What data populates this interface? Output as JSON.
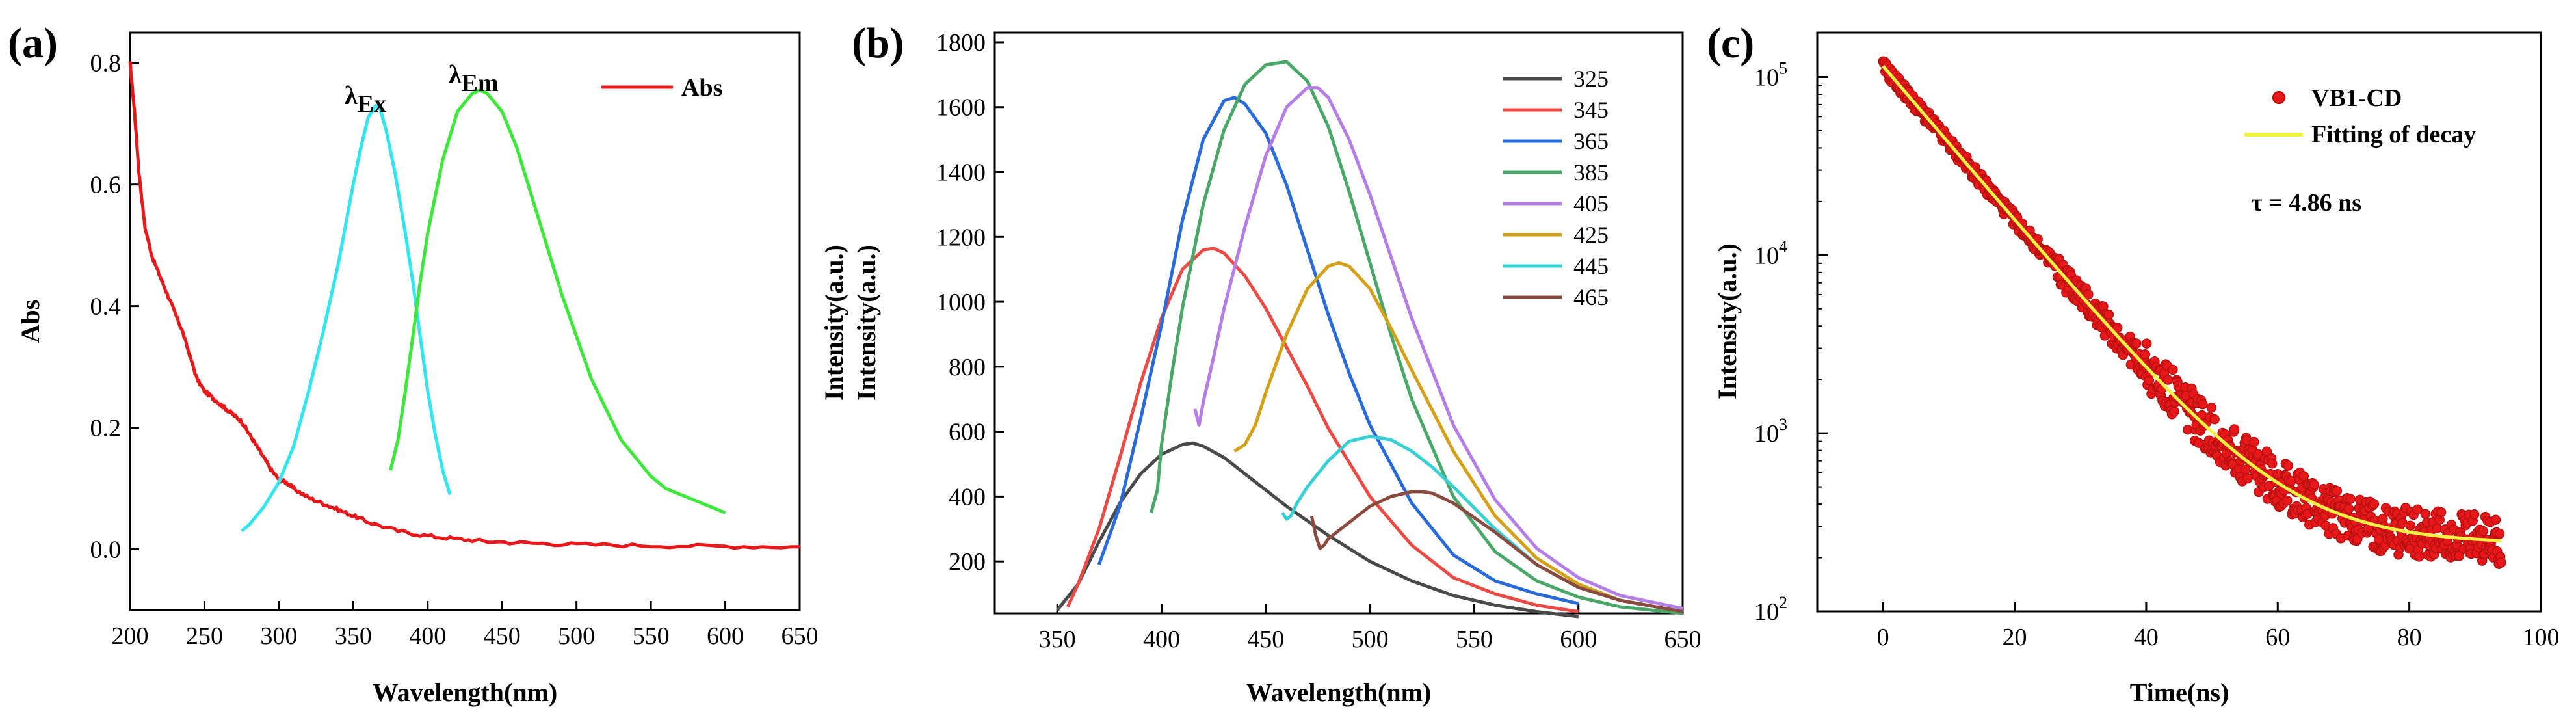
{
  "chart_data": [
    {
      "panel": "(a)",
      "type": "line",
      "xlabel": "Wavelength(nm)",
      "ylabel": "Abs",
      "xlim": [
        200,
        650
      ],
      "ylim": [
        -0.1,
        0.85
      ],
      "xticks": [
        200,
        250,
        300,
        350,
        400,
        450,
        500,
        550,
        600,
        650
      ],
      "yticks": [
        0.0,
        0.2,
        0.4,
        0.6,
        0.8
      ],
      "legend": [
        "Abs"
      ],
      "annotations": [
        {
          "text": "λ",
          "sub": "Ex",
          "x": 356,
          "y": 0.77
        },
        {
          "text": "λ",
          "sub": "Em",
          "x": 421,
          "y": 0.8
        }
      ],
      "series": [
        {
          "name": "Abs",
          "color": "#e8181a",
          "noisy": true,
          "x": [
            200,
            203,
            206,
            210,
            215,
            220,
            225,
            230,
            235,
            240,
            245,
            250,
            255,
            260,
            265,
            270,
            275,
            280,
            285,
            290,
            295,
            300,
            305,
            310,
            320,
            330,
            340,
            350,
            360,
            380,
            400,
            420,
            440,
            470,
            500,
            550,
            600,
            650
          ],
          "y": [
            0.8,
            0.72,
            0.62,
            0.53,
            0.48,
            0.45,
            0.42,
            0.39,
            0.36,
            0.32,
            0.28,
            0.26,
            0.25,
            0.24,
            0.23,
            0.22,
            0.21,
            0.19,
            0.17,
            0.15,
            0.13,
            0.115,
            0.11,
            0.1,
            0.085,
            0.075,
            0.065,
            0.055,
            0.045,
            0.03,
            0.022,
            0.017,
            0.013,
            0.01,
            0.008,
            0.006,
            0.005,
            0.004
          ]
        },
        {
          "name": "λEx",
          "color": "#33e5ef",
          "x": [
            275,
            280,
            290,
            300,
            310,
            320,
            330,
            340,
            350,
            355,
            360,
            365,
            368,
            372,
            378,
            385,
            390,
            395,
            400,
            405,
            410,
            415
          ],
          "y": [
            0.03,
            0.04,
            0.07,
            0.11,
            0.17,
            0.26,
            0.36,
            0.47,
            0.6,
            0.66,
            0.71,
            0.73,
            0.725,
            0.69,
            0.62,
            0.52,
            0.44,
            0.35,
            0.26,
            0.19,
            0.13,
            0.09
          ]
        },
        {
          "name": "λEm",
          "color": "#3ee83a",
          "x": [
            375,
            380,
            385,
            390,
            395,
            400,
            410,
            420,
            430,
            435,
            440,
            450,
            460,
            470,
            480,
            490,
            500,
            510,
            520,
            530,
            540,
            550,
            560,
            570,
            580,
            590,
            600
          ],
          "y": [
            0.13,
            0.18,
            0.26,
            0.35,
            0.44,
            0.52,
            0.64,
            0.72,
            0.75,
            0.755,
            0.75,
            0.72,
            0.66,
            0.58,
            0.5,
            0.42,
            0.35,
            0.28,
            0.23,
            0.18,
            0.15,
            0.12,
            0.1,
            0.09,
            0.08,
            0.07,
            0.06
          ]
        }
      ]
    },
    {
      "panel": "(b)",
      "type": "line",
      "xlabel": "Wavelength(nm)",
      "ylabel": "Intensity(a.u.)",
      "ylabel2": "Intensity(a.u.)",
      "xlim": [
        320,
        650
      ],
      "ylim": [
        40,
        1830
      ],
      "xticks": [
        350,
        400,
        450,
        500,
        550,
        600,
        650
      ],
      "yticks": [
        200,
        400,
        600,
        800,
        1000,
        1200,
        1400,
        1600,
        1800
      ],
      "legend": [
        "325",
        "345",
        "365",
        "385",
        "405",
        "425",
        "445",
        "465"
      ],
      "series": [
        {
          "name": "325",
          "color": "#4a4a4a",
          "x": [
            350,
            360,
            370,
            380,
            390,
            400,
            410,
            415,
            420,
            430,
            440,
            450,
            460,
            480,
            500,
            520,
            540,
            560,
            580,
            600
          ],
          "y": [
            50,
            130,
            260,
            380,
            470,
            530,
            560,
            565,
            555,
            520,
            470,
            420,
            370,
            280,
            200,
            140,
            95,
            65,
            45,
            30
          ]
        },
        {
          "name": "345",
          "color": "#ec4a44",
          "x": [
            355,
            360,
            370,
            380,
            390,
            400,
            410,
            420,
            425,
            430,
            440,
            450,
            460,
            470,
            480,
            500,
            520,
            540,
            560,
            580,
            600
          ],
          "y": [
            60,
            130,
            300,
            520,
            750,
            950,
            1100,
            1160,
            1165,
            1150,
            1080,
            980,
            860,
            740,
            610,
            400,
            250,
            150,
            100,
            65,
            45
          ]
        },
        {
          "name": "365",
          "color": "#2a6bdb",
          "x": [
            370,
            380,
            390,
            400,
            410,
            420,
            430,
            435,
            440,
            450,
            460,
            470,
            480,
            490,
            500,
            520,
            540,
            560,
            580,
            600
          ],
          "y": [
            190,
            370,
            640,
            930,
            1250,
            1500,
            1620,
            1630,
            1610,
            1520,
            1360,
            1160,
            960,
            780,
            620,
            380,
            220,
            140,
            100,
            70
          ]
        },
        {
          "name": "385",
          "color": "#49a867",
          "x": [
            395,
            398,
            400,
            405,
            410,
            420,
            430,
            440,
            450,
            460,
            470,
            480,
            490,
            500,
            510,
            520,
            540,
            560,
            580,
            600,
            620,
            650
          ],
          "y": [
            350,
            420,
            560,
            780,
            980,
            1300,
            1530,
            1670,
            1730,
            1740,
            1680,
            1540,
            1340,
            1120,
            900,
            700,
            400,
            230,
            140,
            90,
            60,
            40
          ]
        },
        {
          "name": "405",
          "color": "#b57ee6",
          "x": [
            416,
            418,
            420,
            425,
            430,
            440,
            450,
            460,
            470,
            475,
            480,
            490,
            500,
            510,
            520,
            540,
            560,
            580,
            600,
            620,
            650
          ],
          "y": [
            670,
            620,
            690,
            830,
            980,
            1230,
            1450,
            1600,
            1660,
            1660,
            1630,
            1500,
            1330,
            1140,
            950,
            620,
            390,
            240,
            150,
            95,
            55
          ]
        },
        {
          "name": "425",
          "color": "#d4a017",
          "x": [
            435,
            440,
            445,
            450,
            460,
            470,
            480,
            485,
            490,
            500,
            510,
            520,
            540,
            560,
            580,
            600,
            620,
            650
          ],
          "y": [
            540,
            560,
            620,
            720,
            900,
            1040,
            1110,
            1120,
            1110,
            1040,
            920,
            790,
            540,
            340,
            210,
            130,
            80,
            45
          ]
        },
        {
          "name": "445",
          "color": "#39d0d3",
          "x": [
            458,
            460,
            462,
            465,
            470,
            480,
            490,
            500,
            510,
            520,
            530,
            540,
            560,
            580,
            600,
            620,
            650
          ],
          "y": [
            350,
            330,
            340,
            380,
            430,
            510,
            570,
            585,
            575,
            540,
            490,
            430,
            300,
            190,
            120,
            80,
            45
          ]
        },
        {
          "name": "465",
          "color": "#8b4a40",
          "x": [
            472,
            474,
            476,
            478,
            480,
            490,
            500,
            510,
            520,
            525,
            530,
            540,
            560,
            580,
            600,
            620,
            650
          ],
          "y": [
            340,
            280,
            240,
            250,
            270,
            320,
            370,
            400,
            415,
            415,
            410,
            380,
            290,
            190,
            120,
            80,
            45
          ]
        }
      ]
    },
    {
      "panel": "(c)",
      "type": "scatter",
      "xlabel": "Time(ns)",
      "ylabel": "Intensity(a.u.)",
      "xlim": [
        -10,
        100
      ],
      "ylim_log10": [
        2,
        5.25
      ],
      "xticks": [
        0,
        20,
        40,
        60,
        80,
        100
      ],
      "yticks": [
        "10^2",
        "10^3",
        "10^4",
        "10^5"
      ],
      "legend": [
        "VB1-CD",
        "Fitting of decay"
      ],
      "annotation": "τ = 4.86 ns",
      "fit": {
        "A": 115000,
        "tau_ns": 4.86,
        "baseline": 240,
        "t_max": 94
      },
      "series": [
        {
          "name": "VB1-CD",
          "color": "#e8181a",
          "marker": "circle"
        },
        {
          "name": "Fitting of decay",
          "color": "#f2f244"
        }
      ]
    }
  ]
}
